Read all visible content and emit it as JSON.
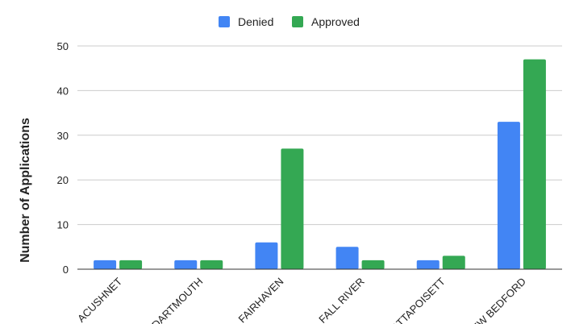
{
  "chart_data": {
    "type": "bar",
    "title": "",
    "xlabel": "",
    "ylabel": "Number of Applications",
    "ylim": [
      0,
      50
    ],
    "yticks": [
      0,
      10,
      20,
      30,
      40,
      50
    ],
    "categories": [
      "ACUSHNET",
      "DARTMOUTH",
      "FAIRHAVEN",
      "FALL RIVER",
      "MATTAPOISETT",
      "NEW BEDFORD"
    ],
    "series": [
      {
        "name": "Denied",
        "color": "#4285f4",
        "values": [
          2,
          2,
          6,
          5,
          2,
          33
        ]
      },
      {
        "name": "Approved",
        "color": "#34a853",
        "values": [
          2,
          2,
          27,
          2,
          3,
          47
        ]
      }
    ],
    "grid": true,
    "legend": "top-center"
  }
}
